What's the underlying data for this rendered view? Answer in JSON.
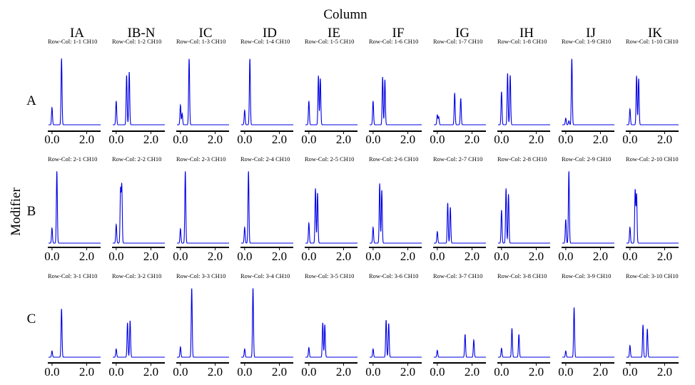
{
  "chart_data": {
    "type": "line",
    "title": "Column",
    "ylabel": "Modifier",
    "columns": [
      "IA",
      "IB-N",
      "IC",
      "ID",
      "IE",
      "IF",
      "IG",
      "IH",
      "IJ",
      "IK"
    ],
    "rows": [
      "A",
      "B",
      "C"
    ],
    "xlim": [
      -0.2,
      2.8
    ],
    "x_ticks": [
      "0.0",
      "2.0"
    ],
    "grid": false,
    "line_color": "#0000e6",
    "panels": [
      {
        "label": "Row-Col: 1-1 CH10",
        "peaks": [
          {
            "t": 0.0,
            "h": 0.26
          },
          {
            "t": 0.55,
            "h": 1.0
          }
        ]
      },
      {
        "label": "Row-Col: 1-2 CH10",
        "peaks": [
          {
            "t": 0.0,
            "h": 0.36
          },
          {
            "t": 0.6,
            "h": 0.75
          },
          {
            "t": 0.75,
            "h": 0.8
          }
        ]
      },
      {
        "label": "Row-Col: 1-3 CH10",
        "peaks": [
          {
            "t": 0.0,
            "h": 0.3
          },
          {
            "t": 0.1,
            "h": 0.17
          },
          {
            "t": 0.5,
            "h": 1.0
          }
        ]
      },
      {
        "label": "Row-Col: 1-4 CH10",
        "peaks": [
          {
            "t": 0.0,
            "h": 0.22
          },
          {
            "t": 0.3,
            "h": 1.0
          }
        ]
      },
      {
        "label": "Row-Col: 1-5 CH10",
        "peaks": [
          {
            "t": 0.0,
            "h": 0.36
          },
          {
            "t": 0.55,
            "h": 0.74
          },
          {
            "t": 0.66,
            "h": 0.7
          }
        ]
      },
      {
        "label": "Row-Col: 1-6 CH10",
        "peaks": [
          {
            "t": 0.0,
            "h": 0.36
          },
          {
            "t": 0.55,
            "h": 0.72
          },
          {
            "t": 0.68,
            "h": 0.68
          }
        ]
      },
      {
        "label": "Row-Col: 1-7 CH10",
        "peaks": [
          {
            "t": 0.0,
            "h": 0.15
          },
          {
            "t": 0.08,
            "h": 0.12
          },
          {
            "t": 1.0,
            "h": 0.48
          },
          {
            "t": 1.35,
            "h": 0.4
          }
        ]
      },
      {
        "label": "Row-Col: 1-8 CH10",
        "peaks": [
          {
            "t": 0.0,
            "h": 0.5
          },
          {
            "t": 0.35,
            "h": 0.78
          },
          {
            "t": 0.5,
            "h": 0.75
          }
        ]
      },
      {
        "label": "Row-Col: 1-9 CH10",
        "peaks": [
          {
            "t": 0.0,
            "h": 0.1
          },
          {
            "t": 0.18,
            "h": 0.06
          },
          {
            "t": 0.35,
            "h": 1.0
          }
        ]
      },
      {
        "label": "Row-Col: 1-10 CH10",
        "peaks": [
          {
            "t": 0.0,
            "h": 0.24
          },
          {
            "t": 0.38,
            "h": 0.74
          },
          {
            "t": 0.5,
            "h": 0.7
          }
        ]
      },
      {
        "label": "Row-Col: 2-1 CH10",
        "peaks": [
          {
            "t": 0.0,
            "h": 0.21
          },
          {
            "t": 0.28,
            "h": 1.0
          }
        ]
      },
      {
        "label": "Row-Col: 2-2 CH10",
        "peaks": [
          {
            "t": 0.0,
            "h": 0.26
          },
          {
            "t": 0.25,
            "h": 0.74
          },
          {
            "t": 0.32,
            "h": 0.8
          }
        ]
      },
      {
        "label": "Row-Col: 2-3 CH10",
        "peaks": [
          {
            "t": 0.0,
            "h": 0.2
          },
          {
            "t": 0.28,
            "h": 1.0
          }
        ]
      },
      {
        "label": "Row-Col: 2-4 CH10",
        "peaks": [
          {
            "t": 0.0,
            "h": 0.22
          },
          {
            "t": 0.22,
            "h": 1.0
          }
        ]
      },
      {
        "label": "Row-Col: 2-5 CH10",
        "peaks": [
          {
            "t": 0.0,
            "h": 0.28
          },
          {
            "t": 0.38,
            "h": 0.76
          },
          {
            "t": 0.5,
            "h": 0.7
          }
        ]
      },
      {
        "label": "Row-Col: 2-6 CH10",
        "peaks": [
          {
            "t": 0.0,
            "h": 0.22
          },
          {
            "t": 0.38,
            "h": 0.83
          },
          {
            "t": 0.5,
            "h": 0.74
          }
        ]
      },
      {
        "label": "Row-Col: 2-7 CH10",
        "peaks": [
          {
            "t": 0.0,
            "h": 0.16
          },
          {
            "t": 0.6,
            "h": 0.56
          },
          {
            "t": 0.75,
            "h": 0.5
          }
        ]
      },
      {
        "label": "Row-Col: 2-8 CH10",
        "peaks": [
          {
            "t": 0.0,
            "h": 0.46
          },
          {
            "t": 0.26,
            "h": 0.76
          },
          {
            "t": 0.4,
            "h": 0.68
          }
        ]
      },
      {
        "label": "Row-Col: 2-9 CH10",
        "peaks": [
          {
            "t": 0.0,
            "h": 0.33
          },
          {
            "t": 0.18,
            "h": 1.0
          }
        ]
      },
      {
        "label": "Row-Col: 2-10 CH10",
        "peaks": [
          {
            "t": 0.0,
            "h": 0.22
          },
          {
            "t": 0.3,
            "h": 0.74
          },
          {
            "t": 0.38,
            "h": 0.68
          }
        ]
      },
      {
        "label": "Row-Col: 3-1 CH10",
        "peaks": [
          {
            "t": 0.0,
            "h": 0.09
          },
          {
            "t": 0.55,
            "h": 0.7
          }
        ]
      },
      {
        "label": "Row-Col: 3-2 CH10",
        "peaks": [
          {
            "t": 0.0,
            "h": 0.12
          },
          {
            "t": 0.65,
            "h": 0.5
          },
          {
            "t": 0.8,
            "h": 0.53
          }
        ]
      },
      {
        "label": "Row-Col: 3-3 CH10",
        "peaks": [
          {
            "t": 0.0,
            "h": 0.15
          },
          {
            "t": 0.65,
            "h": 1.0
          }
        ]
      },
      {
        "label": "Row-Col: 3-4 CH10",
        "peaks": [
          {
            "t": 0.0,
            "h": 0.12
          },
          {
            "t": 0.48,
            "h": 1.0
          }
        ]
      },
      {
        "label": "Row-Col: 3-5 CH10",
        "peaks": [
          {
            "t": 0.0,
            "h": 0.14
          },
          {
            "t": 0.8,
            "h": 0.5
          },
          {
            "t": 0.92,
            "h": 0.47
          }
        ]
      },
      {
        "label": "Row-Col: 3-6 CH10",
        "peaks": [
          {
            "t": 0.0,
            "h": 0.12
          },
          {
            "t": 0.75,
            "h": 0.54
          },
          {
            "t": 0.9,
            "h": 0.49
          }
        ]
      },
      {
        "label": "Row-Col: 3-7 CH10",
        "peaks": [
          {
            "t": 0.0,
            "h": 0.1
          },
          {
            "t": 1.6,
            "h": 0.33
          },
          {
            "t": 2.1,
            "h": 0.25
          }
        ]
      },
      {
        "label": "Row-Col: 3-8 CH10",
        "peaks": [
          {
            "t": 0.0,
            "h": 0.13
          },
          {
            "t": 0.6,
            "h": 0.42
          },
          {
            "t": 1.0,
            "h": 0.33
          }
        ]
      },
      {
        "label": "Row-Col: 3-9 CH10",
        "peaks": [
          {
            "t": 0.0,
            "h": 0.09
          },
          {
            "t": 0.48,
            "h": 0.72
          }
        ]
      },
      {
        "label": "Row-Col: 3-10 CH10",
        "peaks": [
          {
            "t": 0.0,
            "h": 0.17
          },
          {
            "t": 0.75,
            "h": 0.47
          },
          {
            "t": 1.0,
            "h": 0.41
          }
        ]
      }
    ]
  }
}
